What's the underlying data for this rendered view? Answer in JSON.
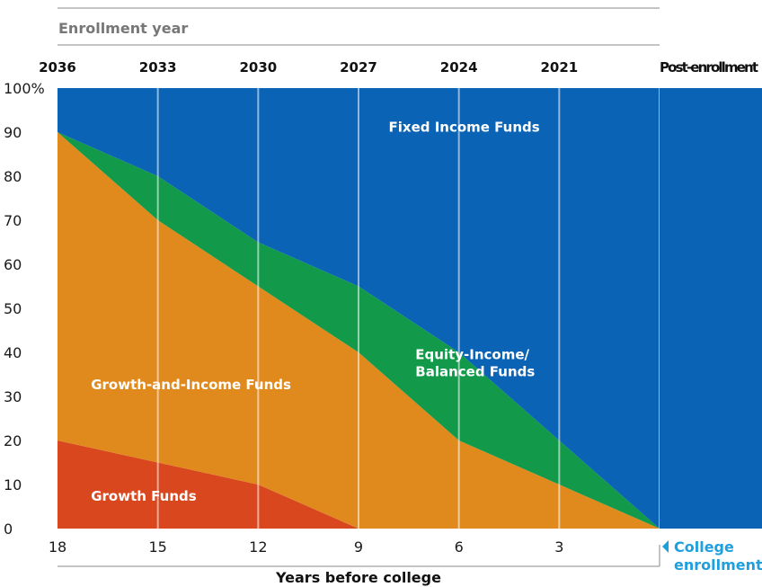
{
  "chart_data": {
    "type": "area",
    "stacked": true,
    "top_axis_title": "Enrollment year",
    "top_ticks": [
      "2036",
      "2033",
      "2030",
      "2027",
      "2024",
      "2021",
      "Post-enrollment"
    ],
    "x": [
      18,
      15,
      12,
      9,
      6,
      3,
      0
    ],
    "x_tick_labels": [
      "18",
      "15",
      "12",
      "9",
      "6",
      "3"
    ],
    "xlabel": "Years before college",
    "ylim": [
      0,
      100
    ],
    "y_ticks": [
      "0",
      "10",
      "20",
      "30",
      "40",
      "50",
      "60",
      "70",
      "80",
      "90",
      "100%"
    ],
    "series": [
      {
        "name": "Growth Funds",
        "color": "#d9471f",
        "values": [
          20,
          15,
          10,
          0,
          0,
          0,
          0
        ]
      },
      {
        "name": "Growth-and-Income Funds",
        "color": "#e08a1e",
        "values": [
          70,
          55,
          45,
          40,
          20,
          10,
          0
        ]
      },
      {
        "name": "Equity-Income/ Balanced Funds",
        "color": "#129a4a",
        "values": [
          0,
          10,
          10,
          15,
          20,
          10,
          0
        ]
      },
      {
        "name": "Fixed Income Funds",
        "color": "#0b63b5",
        "values": [
          10,
          20,
          35,
          45,
          60,
          80,
          100
        ]
      }
    ],
    "area_labels": [
      {
        "series": 0,
        "lines": [
          "Growth Funds"
        ]
      },
      {
        "series": 1,
        "lines": [
          "Growth-and-Income Funds"
        ]
      },
      {
        "series": 2,
        "lines": [
          "Equity-Income/",
          "Balanced Funds"
        ]
      },
      {
        "series": 3,
        "lines": [
          "Fixed Income Funds"
        ]
      }
    ],
    "enrollment_marker": {
      "lines": [
        "College",
        "enrollment"
      ],
      "color": "#1ea0de"
    }
  }
}
